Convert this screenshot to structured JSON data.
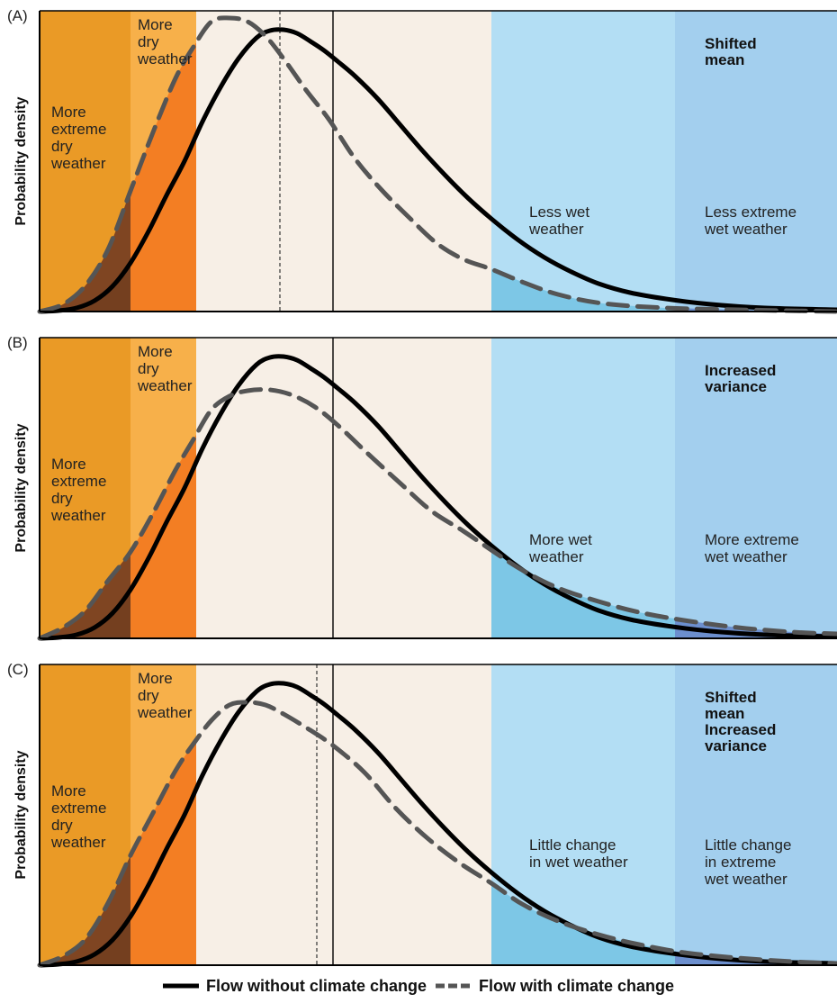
{
  "colors": {
    "extreme_dry": "#ea9a26",
    "dry": "#f7b04a",
    "normal": "#f7efe6",
    "wet": "#b3def4",
    "extreme_wet": "#a3cfee",
    "dry_fill_extreme": "#7f4522",
    "dry_fill": "#f37e23",
    "wet_fill": "#7dc7e6",
    "wet_fill_extreme": "#6c8fce",
    "line_without": "#000000",
    "line_with": "#555555"
  },
  "y_axis_label": "Probability density",
  "panels": [
    {
      "id": "A",
      "letter": "(A)",
      "title_lines": [
        "Shifted",
        "mean"
      ],
      "labels": {
        "extreme_dry": [
          "More",
          "extreme",
          "dry",
          "weather"
        ],
        "dry": [
          "More",
          "dry",
          "weather"
        ],
        "wet": [
          "Less wet",
          "weather"
        ],
        "extreme_wet": [
          "Less extreme",
          "wet weather"
        ]
      },
      "baseline_mean": true,
      "climate_mean": true
    },
    {
      "id": "B",
      "letter": "(B)",
      "title_lines": [
        "Increased",
        "variance"
      ],
      "labels": {
        "extreme_dry": [
          "More",
          "extreme",
          "dry",
          "weather"
        ],
        "dry": [
          "More",
          "dry",
          "weather"
        ],
        "wet": [
          "More wet",
          "weather"
        ],
        "extreme_wet": [
          "More extreme",
          "wet weather"
        ]
      },
      "baseline_mean": true,
      "climate_mean": false
    },
    {
      "id": "C",
      "letter": "(C)",
      "title_lines": [
        "Shifted",
        "mean",
        "Increased",
        "variance"
      ],
      "labels": {
        "extreme_dry": [
          "More",
          "extreme",
          "dry",
          "weather"
        ],
        "dry": [
          "More",
          "dry",
          "weather"
        ],
        "wet": [
          "Little change",
          "in wet weather"
        ],
        "extreme_wet": [
          "Little change",
          "in extreme",
          "wet weather"
        ]
      },
      "baseline_mean": true,
      "climate_mean": true
    }
  ],
  "legend": {
    "without": "Flow without climate change",
    "with": "Flow with climate change"
  }
}
